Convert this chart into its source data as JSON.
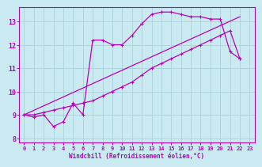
{
  "xlabel": "Windchill (Refroidissement éolien,°C)",
  "bg_color": "#c8eaf0",
  "grid_color": "#a8d0dc",
  "line_color": "#bb00bb",
  "xlim": [
    -0.5,
    23.5
  ],
  "ylim": [
    7.8,
    13.6
  ],
  "yticks": [
    8,
    9,
    10,
    11,
    12,
    13
  ],
  "xticks": [
    0,
    1,
    2,
    3,
    4,
    5,
    6,
    7,
    8,
    9,
    10,
    11,
    12,
    13,
    14,
    15,
    16,
    17,
    18,
    19,
    20,
    21,
    22,
    23
  ],
  "line1_x": [
    0,
    1,
    2,
    3,
    4,
    5,
    6,
    7,
    8,
    9,
    10,
    11,
    12,
    13,
    14,
    15,
    16,
    17,
    18,
    19,
    20,
    21,
    22
  ],
  "line1_y": [
    9.0,
    8.9,
    9.0,
    8.5,
    8.7,
    9.5,
    9.0,
    12.2,
    12.2,
    12.0,
    12.0,
    12.4,
    12.9,
    13.3,
    13.4,
    13.4,
    13.3,
    13.2,
    13.2,
    13.1,
    13.1,
    11.7,
    11.4
  ],
  "line2_x": [
    0,
    1,
    2,
    3,
    4,
    5,
    6,
    7,
    8,
    9,
    10,
    11,
    12,
    13,
    14,
    15,
    16,
    17,
    18,
    19,
    20,
    21,
    22
  ],
  "line2_y": [
    9.0,
    9.0,
    9.1,
    9.2,
    9.3,
    9.4,
    9.5,
    9.6,
    9.8,
    10.0,
    10.2,
    10.4,
    10.7,
    11.0,
    11.2,
    11.4,
    11.6,
    11.8,
    12.0,
    12.2,
    12.4,
    12.6,
    11.4
  ],
  "line3_x": [
    0,
    22
  ],
  "line3_y": [
    9.0,
    13.2
  ]
}
